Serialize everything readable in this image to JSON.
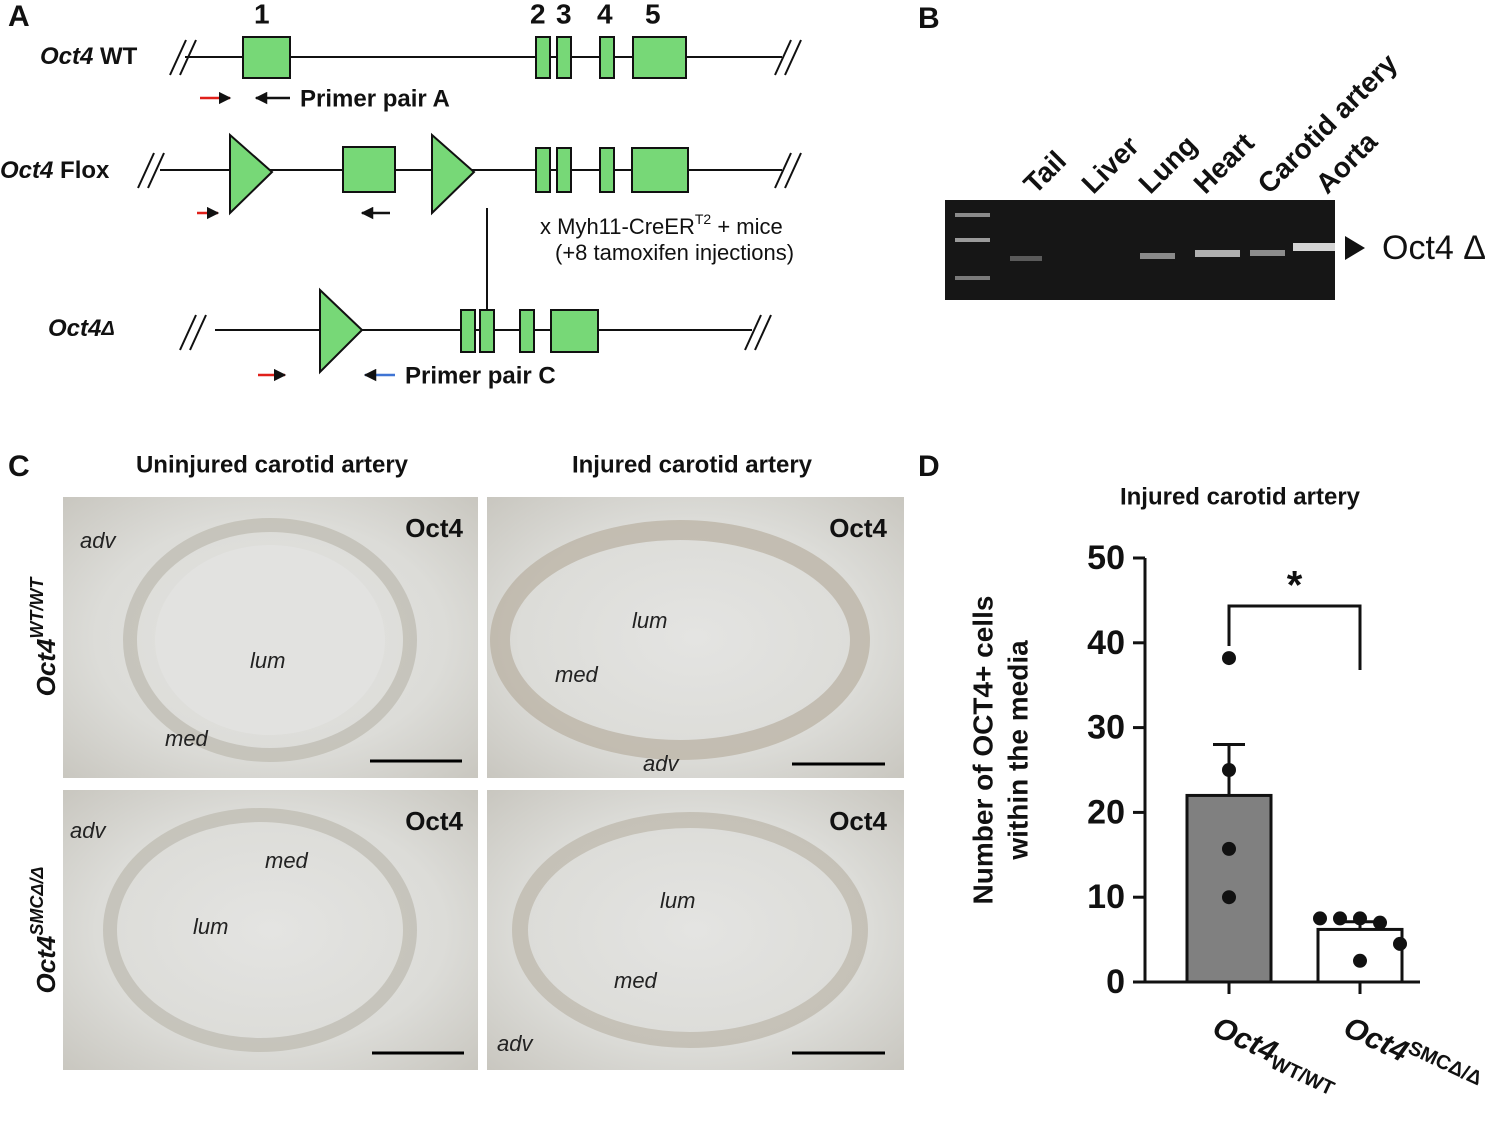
{
  "panel_a": {
    "label": "A",
    "exons": [
      "1",
      "2",
      "3",
      "4",
      "5"
    ],
    "wt": {
      "gene": "Oct4",
      "allele": "WT"
    },
    "primer_a": "Primer pair A",
    "flox": {
      "gene": "Oct4",
      "allele": "Flox"
    },
    "cross": {
      "before": "x Myh11-CreER",
      "sup": "T2",
      "after": " + mice"
    },
    "tamoxifen": "(+8 tamoxifen injections)",
    "delta": {
      "gene": "Oct4",
      "allele": "Δ"
    },
    "primer_c": "Primer pair C"
  },
  "panel_b": {
    "label": "B",
    "lanes": [
      "Tail",
      "Liver",
      "Lung",
      "Heart",
      "Carotid artery",
      "Aorta"
    ],
    "band": "Oct4 Δ"
  },
  "panel_c": {
    "label": "C",
    "columns": [
      "Uninjured carotid artery",
      "Injured carotid artery"
    ],
    "rows": [
      {
        "gene": "Oct4",
        "genotype": "WT/WT"
      },
      {
        "gene": "Oct4",
        "genotype": "SMCΔ/Δ"
      }
    ],
    "images": [
      {
        "stain": "Oct4",
        "labels": [
          "adv",
          "lum",
          "med"
        ]
      },
      {
        "stain": "Oct4",
        "labels": [
          "lum",
          "med",
          "adv"
        ]
      },
      {
        "stain": "Oct4",
        "labels": [
          "adv",
          "med",
          "lum"
        ]
      },
      {
        "stain": "Oct4",
        "labels": [
          "lum",
          "med",
          "adv"
        ]
      }
    ]
  },
  "chart_data": {
    "type": "bar",
    "label": "D",
    "title": "Injured carotid artery",
    "y_label": [
      "Number of OCT4+ cells",
      "within the media"
    ],
    "categories": [
      {
        "gene": "Oct4",
        "genotype": "WT/WT"
      },
      {
        "gene": "Oct4",
        "genotype": "SMCΔ/Δ"
      }
    ],
    "values": [
      22,
      6.2
    ],
    "errors": [
      6,
      0.9
    ],
    "colors": [
      "#808080",
      "#ffffff"
    ],
    "points": [
      [
        38.2,
        25,
        15.7,
        10
      ],
      [
        7.5,
        7.5,
        7.5,
        7,
        4.5,
        2.5
      ]
    ],
    "significance": "*",
    "ylim": [
      0,
      50
    ],
    "yticks": [
      0,
      10,
      20,
      30,
      40,
      50
    ]
  }
}
